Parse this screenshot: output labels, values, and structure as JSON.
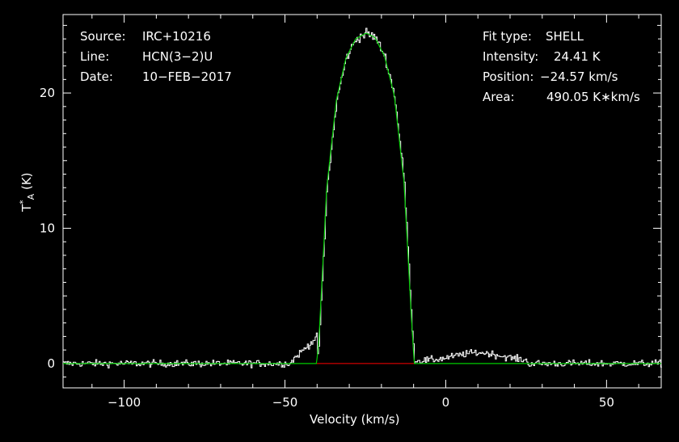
{
  "chart_data": {
    "type": "line",
    "xlabel": "Velocity (km/s)",
    "ylabel_main": "T",
    "ylabel_sub": "A",
    "ylabel_sup": "*",
    "ylabel_unit": "(K)",
    "xlim": [
      -119,
      67
    ],
    "ylim": [
      -1.8,
      25.8
    ],
    "xticks_major": [
      -100,
      -50,
      0,
      50
    ],
    "xtick_labels": [
      "−100",
      "−50",
      "0",
      "50"
    ],
    "yticks_major": [
      0,
      10,
      20
    ],
    "ytick_labels": [
      "0",
      "10",
      "20"
    ],
    "grid": false,
    "series": [
      {
        "kind": "spectrum-histogram",
        "color": "#ffffff",
        "shape": "noisy spectrum: baseline ~0 K, rise starting near -48 km/s, parabolic peak ~24.4 K at -24.57 km/s, drop near -10 km/s, weak wing ~0.8 K between -8 and +25 km/s",
        "noise_rms_K": 0.25,
        "channel_width_kms": 0.35
      },
      {
        "kind": "fit",
        "color": "#00cc00",
        "profile": "SHELL",
        "center_kms": -24.57,
        "peak_K": 24.41,
        "x": [
          -119,
          -40.2,
          -39.5,
          -37,
          -34,
          -31,
          -28,
          -25,
          -24.57,
          -22,
          -19,
          -16,
          -13,
          -10.6,
          -9.8,
          67
        ],
        "y": [
          0,
          0,
          1.5,
          13.0,
          19.5,
          22.6,
          24.0,
          24.4,
          24.41,
          24.1,
          22.7,
          19.8,
          13.5,
          3.0,
          0,
          0
        ]
      },
      {
        "kind": "baseline",
        "color": "#ff0000",
        "x": [
          -40.2,
          -9.8
        ],
        "y": [
          0,
          0
        ]
      }
    ]
  },
  "info_left": [
    {
      "label": "Source:",
      "value": "IRC+10216"
    },
    {
      "label": "Line:",
      "value": "HCN(3−2)U"
    },
    {
      "label": "Date:",
      "value": "10−FEB−2017"
    }
  ],
  "info_right": [
    {
      "label": "Fit type:",
      "value": "SHELL"
    },
    {
      "label": "Intensity:",
      "value": "24.41 K"
    },
    {
      "label": "Position:",
      "value": "−24.57 km/s"
    },
    {
      "label": "Area:",
      "value": "490.05 K∗km/s"
    }
  ]
}
